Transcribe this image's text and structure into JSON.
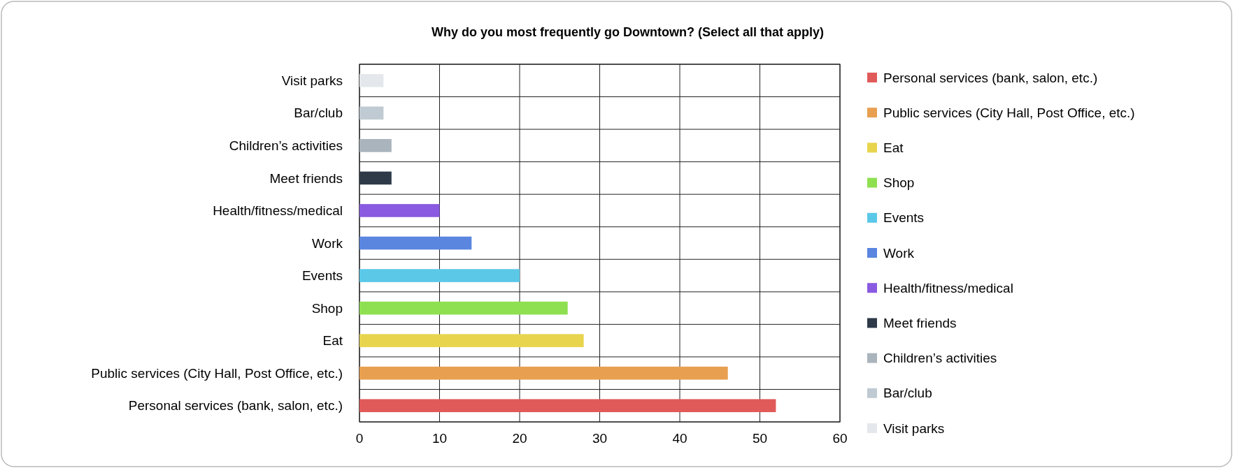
{
  "chart_data": {
    "type": "bar",
    "orientation": "horizontal",
    "title": "Why do you most frequently go Downtown? (Select all that apply)",
    "categories": [
      "Visit parks",
      "Bar/club",
      "Children’s activities",
      "Meet friends",
      "Health/fitness/medical",
      "Work",
      "Events",
      "Shop",
      "Eat",
      "Public services (City Hall, Post Office, etc.)",
      "Personal services (bank, salon, etc.)"
    ],
    "series": [
      {
        "name": "Personal services (bank, salon, etc.)",
        "color": "#e05a5a",
        "values": [
          null,
          null,
          null,
          null,
          null,
          null,
          null,
          null,
          null,
          null,
          52
        ]
      },
      {
        "name": "Public services (City Hall, Post Office, etc.)",
        "color": "#e8a050",
        "values": [
          null,
          null,
          null,
          null,
          null,
          null,
          null,
          null,
          null,
          46,
          null
        ]
      },
      {
        "name": "Eat",
        "color": "#e8d44d",
        "values": [
          null,
          null,
          null,
          null,
          null,
          null,
          null,
          null,
          28,
          null,
          null
        ]
      },
      {
        "name": "Shop",
        "color": "#8ee050",
        "values": [
          null,
          null,
          null,
          null,
          null,
          null,
          null,
          26,
          null,
          null,
          null
        ]
      },
      {
        "name": "Events",
        "color": "#5bc8e8",
        "values": [
          null,
          null,
          null,
          null,
          null,
          null,
          20,
          null,
          null,
          null,
          null
        ]
      },
      {
        "name": "Work",
        "color": "#5a86e0",
        "values": [
          null,
          null,
          null,
          null,
          null,
          14,
          null,
          null,
          null,
          null,
          null
        ]
      },
      {
        "name": "Health/fitness/medical",
        "color": "#8a5ae0",
        "values": [
          null,
          null,
          null,
          null,
          10,
          null,
          null,
          null,
          null,
          null,
          null
        ]
      },
      {
        "name": "Meet friends",
        "color": "#2e3a48",
        "values": [
          null,
          null,
          null,
          4,
          null,
          null,
          null,
          null,
          null,
          null,
          null
        ]
      },
      {
        "name": "Children’s activities",
        "color": "#aab4bc",
        "values": [
          null,
          null,
          4,
          null,
          null,
          null,
          null,
          null,
          null,
          null,
          null
        ]
      },
      {
        "name": "Bar/club",
        "color": "#bfcad2",
        "values": [
          null,
          3,
          null,
          null,
          null,
          null,
          null,
          null,
          null,
          null,
          null
        ]
      },
      {
        "name": "Visit parks",
        "color": "#e4e8ec",
        "values": [
          3,
          null,
          null,
          null,
          null,
          null,
          null,
          null,
          null,
          null,
          null
        ]
      }
    ],
    "xlim": [
      0,
      60
    ],
    "xticks": [
      0,
      10,
      20,
      30,
      40,
      50,
      60
    ],
    "grid": true,
    "legend": "right"
  }
}
